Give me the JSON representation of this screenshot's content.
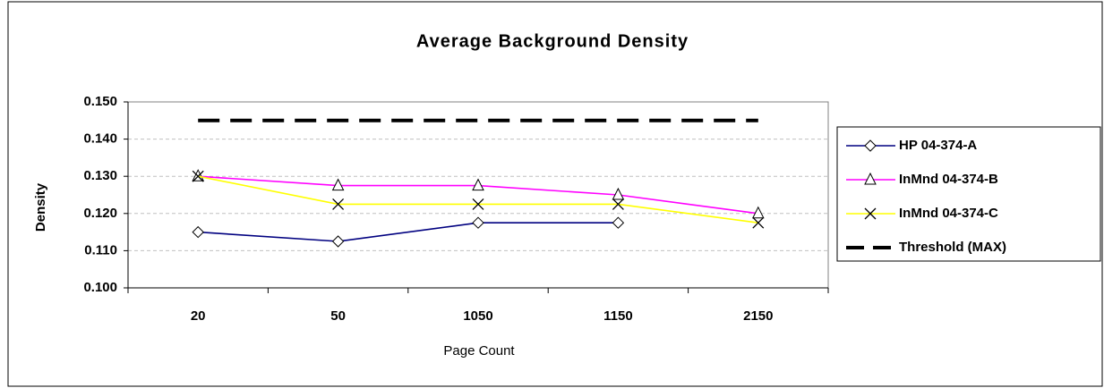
{
  "chart_data": {
    "type": "line",
    "title": "Average Background Density",
    "xlabel": "Page Count",
    "ylabel": "Density",
    "categories": [
      "20",
      "50",
      "1050",
      "1150",
      "2150"
    ],
    "series": [
      {
        "name": "HP 04-374-A",
        "color": "#000080",
        "marker": "diamond",
        "values": [
          0.115,
          0.1125,
          0.1175,
          0.1175,
          null
        ]
      },
      {
        "name": "InMnd 04-374-B",
        "color": "#ff00ff",
        "marker": "triangle",
        "values": [
          0.13,
          0.1275,
          0.1275,
          0.125,
          0.12
        ]
      },
      {
        "name": "InMnd 04-374-C",
        "color": "#ffff00",
        "marker": "x",
        "values": [
          0.13,
          0.1225,
          0.1225,
          0.1225,
          0.1175
        ]
      },
      {
        "name": "Threshold (MAX)",
        "color": "#000000",
        "dashed": true,
        "values": [
          0.145,
          0.145,
          0.145,
          0.145,
          0.145
        ]
      }
    ],
    "ylim": [
      0.1,
      0.15
    ],
    "yticks": [
      {
        "value": 0.1,
        "label": "0.100"
      },
      {
        "value": 0.11,
        "label": "0.110"
      },
      {
        "value": 0.12,
        "label": "0.120"
      },
      {
        "value": 0.13,
        "label": "0.130"
      },
      {
        "value": 0.14,
        "label": "0.140"
      },
      {
        "value": 0.15,
        "label": "0.150"
      }
    ],
    "grid": true,
    "legend": "right"
  }
}
